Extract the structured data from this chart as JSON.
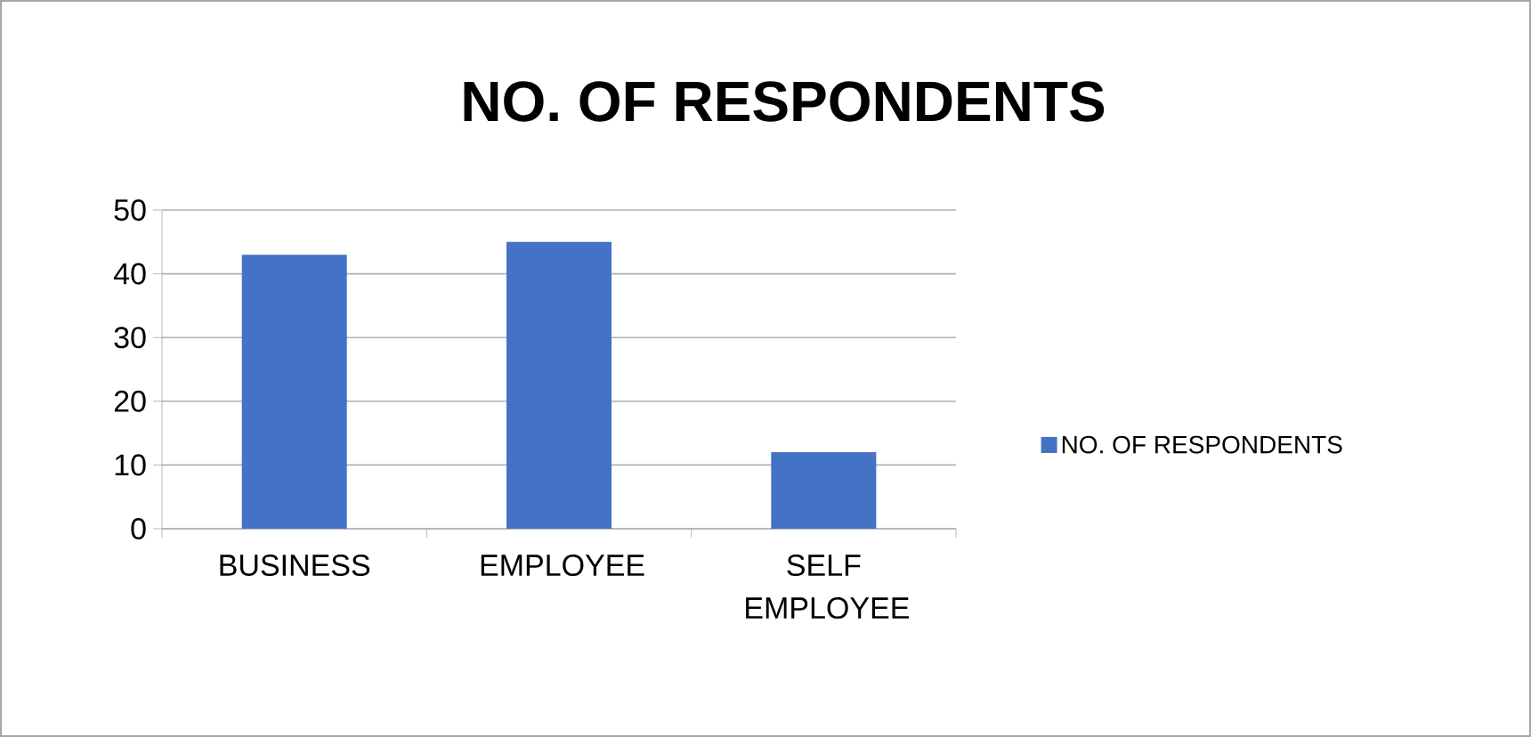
{
  "chart_data": {
    "type": "bar",
    "title": "NO. OF RESPONDENTS",
    "categories": [
      "BUSINESS",
      "EMPLOYEE",
      "SELF EMPLOYEE"
    ],
    "series": [
      {
        "name": "NO. OF RESPONDENTS",
        "color": "#4472c4",
        "values": [
          43,
          45,
          12
        ]
      }
    ],
    "ylim": [
      0,
      50
    ],
    "yticks": [
      0,
      10,
      20,
      30,
      40,
      50
    ],
    "grid": "y",
    "legend": "right"
  }
}
